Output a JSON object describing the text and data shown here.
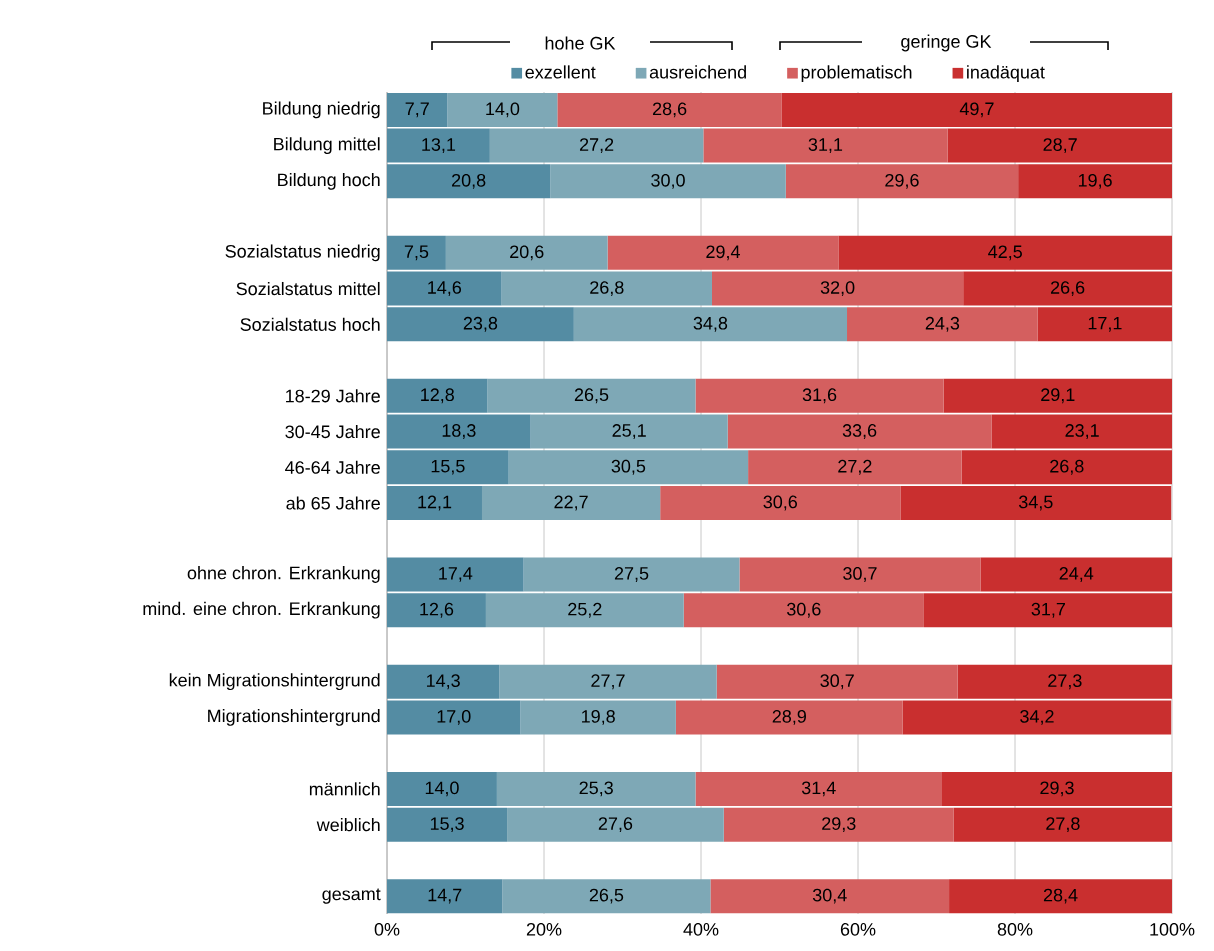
{
  "chart_data": {
    "type": "bar",
    "orientation": "horizontal",
    "stacked": true,
    "categories": [
      "Bildung niedrig",
      "Bildung mittel",
      "Bildung hoch",
      null,
      "Sozialstatus niedrig",
      "Sozialstatus mittel",
      "Sozialstatus hoch",
      null,
      "18-29 Jahre",
      "30-45 Jahre",
      "46-64 Jahre",
      "ab 65 Jahre",
      null,
      "ohne chron. Erkrankung",
      "mind. eine chron. Erkrankung",
      null,
      "kein Migrationshintergrund",
      "Migrationshintergrund",
      null,
      "männlich",
      "weiblich",
      null,
      "gesamt"
    ],
    "series": [
      {
        "name": "exzellent",
        "color": "#548ca3",
        "values": [
          7.7,
          13.1,
          20.8,
          null,
          7.5,
          14.6,
          23.8,
          null,
          12.8,
          18.3,
          15.5,
          12.1,
          null,
          17.4,
          12.6,
          null,
          14.3,
          17.0,
          null,
          14.0,
          15.3,
          null,
          14.7
        ],
        "value_labels": [
          "7,7",
          "13,1",
          "20,8",
          null,
          "7,5",
          "14,6",
          "23,8",
          null,
          "12,8",
          "18,3",
          "15,5",
          "12,1",
          null,
          "17,4",
          "12,6",
          null,
          "14,3",
          "17,0",
          null,
          "14,0",
          "15,3",
          null,
          "14,7"
        ]
      },
      {
        "name": "ausreichend",
        "color": "#7ea8b6",
        "values": [
          14.0,
          27.2,
          30.0,
          null,
          20.6,
          26.8,
          34.8,
          null,
          26.5,
          25.1,
          30.5,
          22.7,
          null,
          27.5,
          25.2,
          null,
          27.7,
          19.8,
          null,
          25.3,
          27.6,
          null,
          26.5
        ],
        "value_labels": [
          "14,0",
          "27,2",
          "30,0",
          null,
          "20,6",
          "26,8",
          "34,8",
          null,
          "26,5",
          "25,1",
          "30,5",
          "22,7",
          null,
          "27,5",
          "25,2",
          null,
          "27,7",
          "19,8",
          null,
          "25,3",
          "27,6",
          null,
          "26,5"
        ]
      },
      {
        "name": "problematisch",
        "color": "#d45f5f",
        "values": [
          28.6,
          31.1,
          29.6,
          null,
          29.4,
          32.0,
          24.3,
          null,
          31.6,
          33.6,
          27.2,
          30.6,
          null,
          30.7,
          30.6,
          null,
          30.7,
          28.9,
          null,
          31.4,
          29.3,
          null,
          30.4
        ],
        "value_labels": [
          "28,6",
          "31,1",
          "29,6",
          null,
          "29,4",
          "32,0",
          "24,3",
          null,
          "31,6",
          "33,6",
          "27,2",
          "30,6",
          null,
          "30,7",
          "30,6",
          null,
          "30,7",
          "28,9",
          null,
          "31,4",
          "29,3",
          null,
          "30,4"
        ]
      },
      {
        "name": "inadäquat",
        "color": "#c92f2f",
        "values": [
          49.7,
          28.7,
          19.6,
          null,
          42.5,
          26.6,
          17.1,
          null,
          29.1,
          23.1,
          26.8,
          34.5,
          null,
          24.4,
          31.7,
          null,
          27.3,
          34.2,
          null,
          29.3,
          27.8,
          null,
          28.4
        ],
        "value_labels": [
          "49,7",
          "28,7",
          "19,6",
          null,
          "42,5",
          "26,6",
          "17,1",
          null,
          "29,1",
          "23,1",
          "26,8",
          "34,5",
          null,
          "24,4",
          "31,7",
          null,
          "27,3",
          "34,2",
          null,
          "29,3",
          "27,8",
          null,
          "28,4"
        ]
      }
    ],
    "xlim": [
      0,
      100
    ],
    "xticks": [
      {
        "value": 0,
        "label": "0%"
      },
      {
        "value": 20,
        "label": "20%"
      },
      {
        "value": 40,
        "label": "40%"
      },
      {
        "value": 60,
        "label": "60%"
      },
      {
        "value": 80,
        "label": "80%"
      },
      {
        "value": 100,
        "label": "100%"
      }
    ],
    "grid": "x",
    "legend": "top",
    "annotations": [
      "hohe GK",
      "geringe GK"
    ]
  }
}
